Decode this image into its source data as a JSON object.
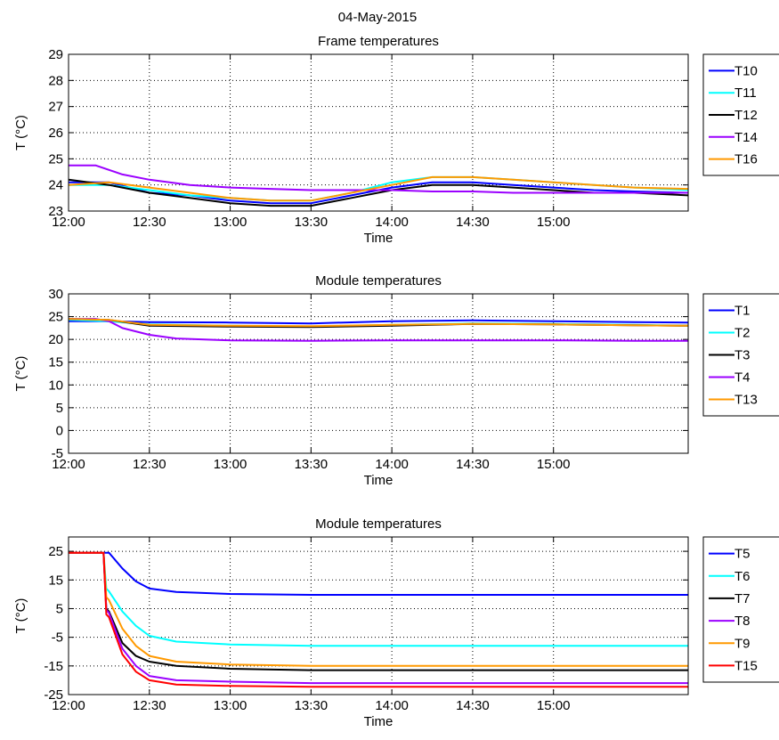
{
  "figure_title": "04-May-2015",
  "chart_data": [
    {
      "type": "line",
      "title": "Frame temperatures",
      "xlabel": "Time",
      "ylabel": "T (°C)",
      "xlim": [
        "12:00",
        "15:50"
      ],
      "xticks": [
        "12:00",
        "12:30",
        "13:00",
        "13:30",
        "14:00",
        "14:30",
        "15:00"
      ],
      "ylim": [
        23,
        29
      ],
      "yticks": [
        23,
        24,
        25,
        26,
        27,
        28,
        29
      ],
      "grid": true,
      "legend": "outside-right",
      "series": [
        {
          "name": "T10",
          "color": "#0000ff",
          "points": [
            [
              "12:00",
              24.1
            ],
            [
              "12:15",
              24.1
            ],
            [
              "12:30",
              23.7
            ],
            [
              "12:45",
              23.6
            ],
            [
              "13:00",
              23.4
            ],
            [
              "13:15",
              23.3
            ],
            [
              "13:30",
              23.3
            ],
            [
              "13:45",
              23.6
            ],
            [
              "14:00",
              23.9
            ],
            [
              "14:15",
              24.1
            ],
            [
              "14:30",
              24.1
            ],
            [
              "14:45",
              24.0
            ],
            [
              "15:00",
              23.9
            ],
            [
              "15:15",
              23.8
            ],
            [
              "15:30",
              23.75
            ],
            [
              "15:50",
              23.7
            ]
          ]
        },
        {
          "name": "T11",
          "color": "#00ffff",
          "points": [
            [
              "12:00",
              24.0
            ],
            [
              "12:15",
              24.0
            ],
            [
              "12:30",
              23.8
            ],
            [
              "12:45",
              23.6
            ],
            [
              "13:00",
              23.5
            ],
            [
              "13:15",
              23.4
            ],
            [
              "13:30",
              23.4
            ],
            [
              "13:45",
              23.7
            ],
            [
              "14:00",
              24.1
            ],
            [
              "14:15",
              24.3
            ],
            [
              "14:30",
              24.3
            ],
            [
              "14:45",
              24.2
            ],
            [
              "15:00",
              24.1
            ],
            [
              "15:15",
              24.0
            ],
            [
              "15:30",
              23.9
            ],
            [
              "15:50",
              23.8
            ]
          ]
        },
        {
          "name": "T12",
          "color": "#000000",
          "points": [
            [
              "12:00",
              24.2
            ],
            [
              "12:15",
              24.0
            ],
            [
              "12:30",
              23.7
            ],
            [
              "12:45",
              23.5
            ],
            [
              "13:00",
              23.3
            ],
            [
              "13:15",
              23.2
            ],
            [
              "13:30",
              23.2
            ],
            [
              "13:45",
              23.5
            ],
            [
              "14:00",
              23.8
            ],
            [
              "14:15",
              24.0
            ],
            [
              "14:30",
              24.0
            ],
            [
              "14:45",
              23.9
            ],
            [
              "15:00",
              23.8
            ],
            [
              "15:15",
              23.7
            ],
            [
              "15:30",
              23.7
            ],
            [
              "15:50",
              23.6
            ]
          ]
        },
        {
          "name": "T14",
          "color": "#9b00ff",
          "points": [
            [
              "12:00",
              24.75
            ],
            [
              "12:10",
              24.75
            ],
            [
              "12:20",
              24.4
            ],
            [
              "12:30",
              24.2
            ],
            [
              "12:45",
              24.0
            ],
            [
              "13:00",
              23.9
            ],
            [
              "13:15",
              23.85
            ],
            [
              "13:30",
              23.8
            ],
            [
              "13:45",
              23.8
            ],
            [
              "14:00",
              23.8
            ],
            [
              "14:15",
              23.75
            ],
            [
              "14:30",
              23.75
            ],
            [
              "14:45",
              23.7
            ],
            [
              "15:00",
              23.7
            ],
            [
              "15:15",
              23.7
            ],
            [
              "15:30",
              23.7
            ],
            [
              "15:50",
              23.7
            ]
          ]
        },
        {
          "name": "T16",
          "color": "#ff9900",
          "points": [
            [
              "12:00",
              24.0
            ],
            [
              "12:15",
              24.1
            ],
            [
              "12:30",
              23.9
            ],
            [
              "12:45",
              23.7
            ],
            [
              "13:00",
              23.5
            ],
            [
              "13:15",
              23.4
            ],
            [
              "13:30",
              23.4
            ],
            [
              "13:45",
              23.7
            ],
            [
              "14:00",
              24.0
            ],
            [
              "14:15",
              24.3
            ],
            [
              "14:30",
              24.3
            ],
            [
              "14:45",
              24.2
            ],
            [
              "15:00",
              24.1
            ],
            [
              "15:15",
              24.0
            ],
            [
              "15:30",
              23.9
            ],
            [
              "15:50",
              23.85
            ]
          ]
        }
      ]
    },
    {
      "type": "line",
      "title": "Module temperatures",
      "xlabel": "Time",
      "ylabel": "T (°C)",
      "xlim": [
        "12:00",
        "15:50"
      ],
      "xticks": [
        "12:00",
        "12:30",
        "13:00",
        "13:30",
        "14:00",
        "14:30",
        "15:00"
      ],
      "ylim": [
        -5,
        30
      ],
      "yticks": [
        -5,
        0,
        5,
        10,
        15,
        20,
        25,
        30
      ],
      "grid": true,
      "legend": "outside-right",
      "series": [
        {
          "name": "T1",
          "color": "#0000ff",
          "points": [
            [
              "12:00",
              24.0
            ],
            [
              "12:15",
              24.0
            ],
            [
              "12:30",
              23.8
            ],
            [
              "13:00",
              23.7
            ],
            [
              "13:30",
              23.5
            ],
            [
              "14:00",
              24.0
            ],
            [
              "14:30",
              24.2
            ],
            [
              "15:00",
              24.0
            ],
            [
              "15:30",
              23.8
            ],
            [
              "15:50",
              23.7
            ]
          ]
        },
        {
          "name": "T2",
          "color": "#00ffff",
          "points": [
            [
              "12:00",
              24.3
            ],
            [
              "12:15",
              24.0
            ],
            [
              "12:30",
              23.3
            ],
            [
              "13:00",
              23.0
            ],
            [
              "13:30",
              22.8
            ],
            [
              "14:00",
              23.2
            ],
            [
              "14:30",
              23.5
            ],
            [
              "15:00",
              23.4
            ],
            [
              "15:30",
              23.2
            ],
            [
              "15:50",
              23.0
            ]
          ]
        },
        {
          "name": "T3",
          "color": "#000000",
          "points": [
            [
              "12:00",
              24.5
            ],
            [
              "12:15",
              24.3
            ],
            [
              "12:30",
              23.0
            ],
            [
              "13:00",
              22.8
            ],
            [
              "13:30",
              22.7
            ],
            [
              "14:00",
              23.0
            ],
            [
              "14:30",
              23.4
            ],
            [
              "15:00",
              23.3
            ],
            [
              "15:30",
              23.1
            ],
            [
              "15:50",
              23.0
            ]
          ]
        },
        {
          "name": "T4",
          "color": "#9b00ff",
          "points": [
            [
              "12:00",
              24.5
            ],
            [
              "12:10",
              24.5
            ],
            [
              "12:15",
              24.0
            ],
            [
              "12:20",
              22.5
            ],
            [
              "12:30",
              21.0
            ],
            [
              "12:40",
              20.2
            ],
            [
              "13:00",
              19.8
            ],
            [
              "13:30",
              19.7
            ],
            [
              "14:00",
              19.8
            ],
            [
              "14:30",
              19.8
            ],
            [
              "15:00",
              19.8
            ],
            [
              "15:30",
              19.7
            ],
            [
              "15:50",
              19.7
            ]
          ]
        },
        {
          "name": "T13",
          "color": "#ff9900",
          "points": [
            [
              "12:00",
              24.5
            ],
            [
              "12:15",
              24.3
            ],
            [
              "12:30",
              23.2
            ],
            [
              "13:00",
              23.0
            ],
            [
              "13:30",
              22.9
            ],
            [
              "14:00",
              23.2
            ],
            [
              "14:30",
              23.4
            ],
            [
              "15:00",
              23.3
            ],
            [
              "15:30",
              23.1
            ],
            [
              "15:50",
              23.0
            ]
          ]
        }
      ]
    },
    {
      "type": "line",
      "title": "Module temperatures",
      "xlabel": "Time",
      "ylabel": "T (°C)",
      "xlim": [
        "12:00",
        "15:50"
      ],
      "xticks": [
        "12:00",
        "12:30",
        "13:00",
        "13:30",
        "14:00",
        "14:30",
        "15:00"
      ],
      "ylim": [
        -25,
        30
      ],
      "yticks": [
        -25,
        -15,
        -5,
        5,
        15,
        25
      ],
      "grid": true,
      "legend": "outside-right",
      "series": [
        {
          "name": "T5",
          "color": "#0000ff",
          "points": [
            [
              "12:00",
              24.5
            ],
            [
              "12:15",
              24.5
            ],
            [
              "12:20",
              19.0
            ],
            [
              "12:25",
              14.5
            ],
            [
              "12:30",
              12.0
            ],
            [
              "12:40",
              10.8
            ],
            [
              "13:00",
              10.1
            ],
            [
              "13:30",
              9.8
            ],
            [
              "14:00",
              9.8
            ],
            [
              "14:30",
              9.8
            ],
            [
              "15:00",
              9.8
            ],
            [
              "15:30",
              9.8
            ],
            [
              "15:50",
              9.8
            ]
          ]
        },
        {
          "name": "T6",
          "color": "#00ffff",
          "points": [
            [
              "12:00",
              24.5
            ],
            [
              "12:13",
              24.5
            ],
            [
              "12:14",
              12.0
            ],
            [
              "12:15",
              11.0
            ],
            [
              "12:20",
              4.0
            ],
            [
              "12:25",
              -1.0
            ],
            [
              "12:30",
              -4.5
            ],
            [
              "12:40",
              -6.5
            ],
            [
              "13:00",
              -7.5
            ],
            [
              "13:30",
              -8.0
            ],
            [
              "14:00",
              -8.0
            ],
            [
              "14:30",
              -8.0
            ],
            [
              "15:00",
              -8.0
            ],
            [
              "15:30",
              -8.0
            ],
            [
              "15:50",
              -8.0
            ]
          ]
        },
        {
          "name": "T7",
          "color": "#000000",
          "points": [
            [
              "12:00",
              24.5
            ],
            [
              "12:13",
              24.5
            ],
            [
              "12:14",
              5.0
            ],
            [
              "12:15",
              4.0
            ],
            [
              "12:20",
              -7.0
            ],
            [
              "12:25",
              -11.5
            ],
            [
              "12:30",
              -13.5
            ],
            [
              "12:40",
              -15.0
            ],
            [
              "13:00",
              -16.0
            ],
            [
              "13:30",
              -16.5
            ],
            [
              "14:00",
              -16.5
            ],
            [
              "14:30",
              -16.5
            ],
            [
              "15:00",
              -16.5
            ],
            [
              "15:30",
              -16.5
            ],
            [
              "15:50",
              -16.5
            ]
          ]
        },
        {
          "name": "T8",
          "color": "#9b00ff",
          "points": [
            [
              "12:00",
              24.5
            ],
            [
              "12:13",
              24.5
            ],
            [
              "12:14",
              4.5
            ],
            [
              "12:15",
              3.5
            ],
            [
              "12:20",
              -9.0
            ],
            [
              "12:25",
              -15.0
            ],
            [
              "12:30",
              -18.5
            ],
            [
              "12:40",
              -20.0
            ],
            [
              "13:00",
              -20.5
            ],
            [
              "13:30",
              -21.0
            ],
            [
              "14:00",
              -21.0
            ],
            [
              "14:30",
              -21.0
            ],
            [
              "15:00",
              -21.0
            ],
            [
              "15:30",
              -21.0
            ],
            [
              "15:50",
              -21.0
            ]
          ]
        },
        {
          "name": "T9",
          "color": "#ff9900",
          "points": [
            [
              "12:00",
              24.5
            ],
            [
              "12:13",
              24.5
            ],
            [
              "12:14",
              9.0
            ],
            [
              "12:15",
              8.0
            ],
            [
              "12:20",
              -2.0
            ],
            [
              "12:25",
              -8.0
            ],
            [
              "12:30",
              -11.5
            ],
            [
              "12:40",
              -13.5
            ],
            [
              "13:00",
              -14.5
            ],
            [
              "13:30",
              -15.0
            ],
            [
              "14:00",
              -15.0
            ],
            [
              "14:30",
              -15.0
            ],
            [
              "15:00",
              -15.0
            ],
            [
              "15:30",
              -15.0
            ],
            [
              "15:50",
              -15.0
            ]
          ]
        },
        {
          "name": "T15",
          "color": "#ff0000",
          "points": [
            [
              "12:00",
              24.5
            ],
            [
              "12:13",
              24.5
            ],
            [
              "12:14",
              3.0
            ],
            [
              "12:15",
              2.0
            ],
            [
              "12:20",
              -11.0
            ],
            [
              "12:25",
              -17.0
            ],
            [
              "12:30",
              -20.0
            ],
            [
              "12:40",
              -21.5
            ],
            [
              "13:00",
              -22.0
            ],
            [
              "13:30",
              -22.3
            ],
            [
              "14:00",
              -22.3
            ],
            [
              "14:30",
              -22.3
            ],
            [
              "15:00",
              -22.3
            ],
            [
              "15:30",
              -22.3
            ],
            [
              "15:50",
              -22.3
            ]
          ]
        }
      ]
    }
  ]
}
